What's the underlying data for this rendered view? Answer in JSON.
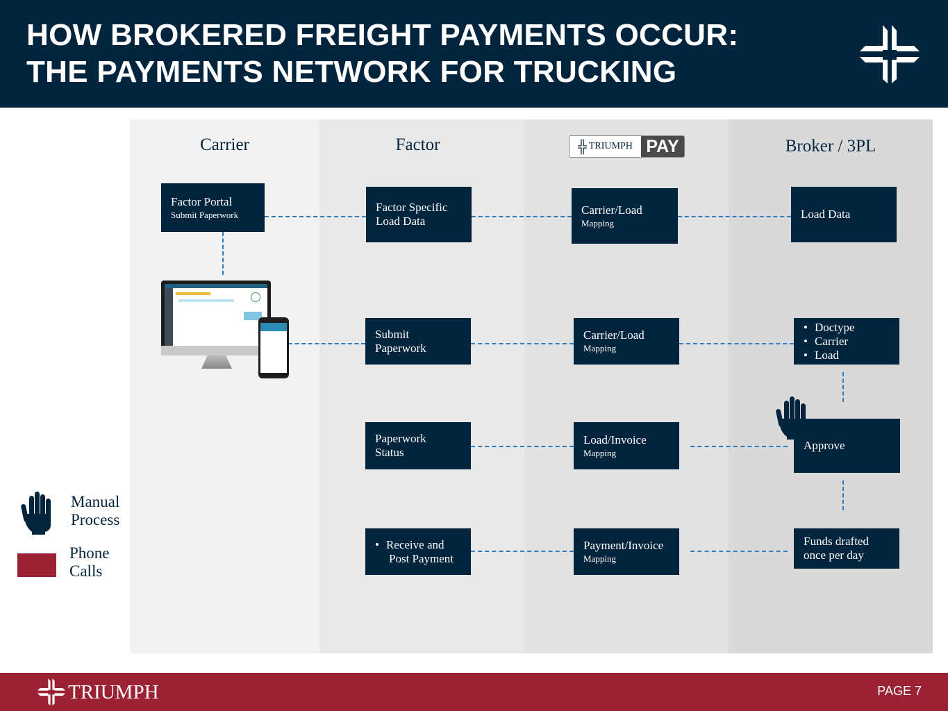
{
  "header": {
    "title_line1": "HOW BROKERED FREIGHT PAYMENTS OCCUR:",
    "title_line2": "THE PAYMENTS NETWORK FOR TRUCKING",
    "logo": "triumph-cross-icon"
  },
  "columns": {
    "carrier": "Carrier",
    "factor": "Factor",
    "triumph_pay": {
      "brand": "TRIUMPH",
      "product": "PAY"
    },
    "broker": "Broker / 3PL"
  },
  "boxes": {
    "factor_portal": {
      "title": "Factor Portal",
      "sub": "Submit Paperwork"
    },
    "factor_specific": {
      "title": "Factor Specific Load Data"
    },
    "carrier_load_mapping_1": {
      "title": "Carrier/Load",
      "sub": "Mapping"
    },
    "load_data": {
      "title": "Load Data"
    },
    "submit_paperwork": {
      "title": "Submit Paperwork"
    },
    "carrier_load_mapping_2": {
      "title": "Carrier/Load",
      "sub": "Mapping"
    },
    "broker_checks": {
      "items": [
        "Doctype",
        "Carrier",
        "Load"
      ]
    },
    "paperwork_status": {
      "title": "Paperwork Status"
    },
    "load_invoice_mapping": {
      "title": "Load/Invoice",
      "sub": "Mapping"
    },
    "approve": {
      "title": "Approve"
    },
    "receive_payment": {
      "items": [
        "Receive and Post Payment"
      ]
    },
    "payment_invoice_mapping": {
      "title": "Payment/Invoice",
      "sub": "Mapping"
    },
    "funds_drafted": {
      "title": "Funds drafted once per day"
    }
  },
  "legend": {
    "manual": "Manual Process",
    "phone": "Phone Calls"
  },
  "footer": {
    "brand": "TRIUMPH",
    "page": "PAGE 7"
  },
  "colors": {
    "navy": "#02243d",
    "red": "#9b2234",
    "connector": "#2d7cbf"
  }
}
